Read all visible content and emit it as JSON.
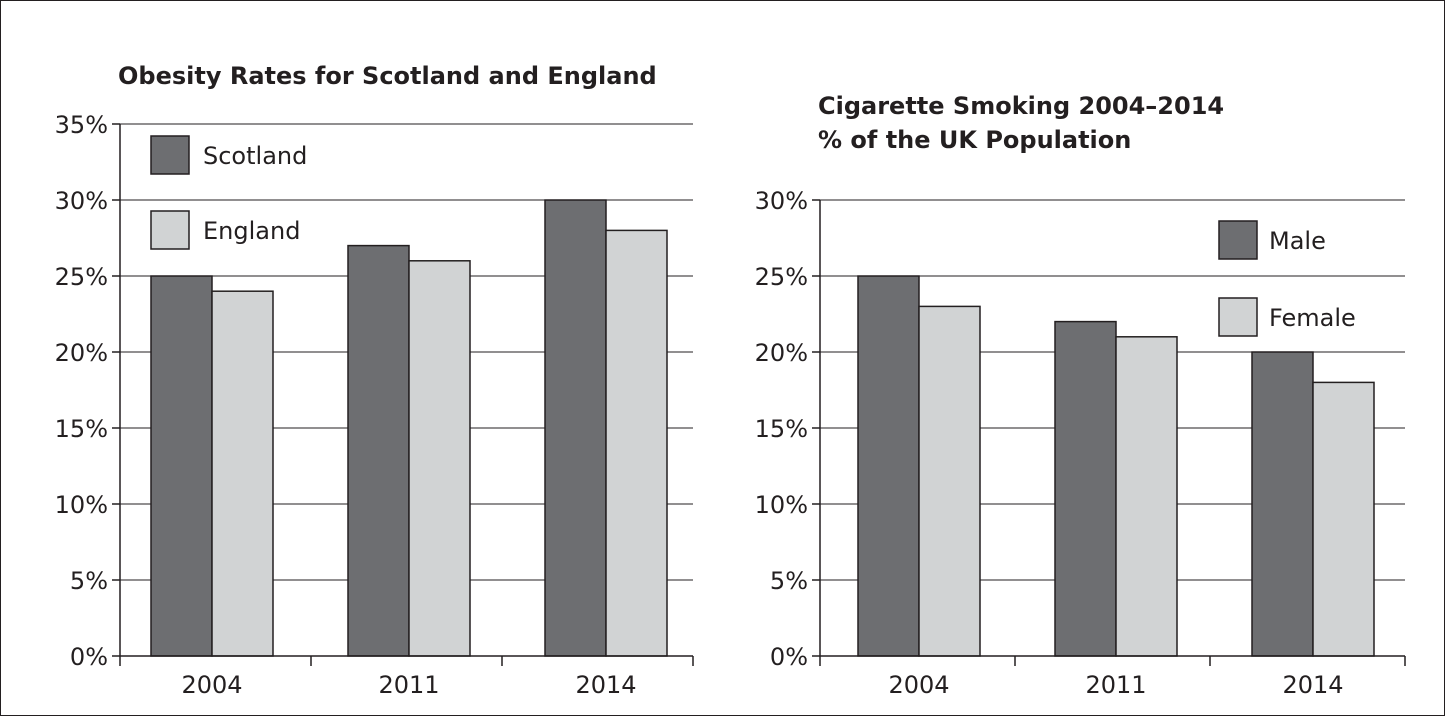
{
  "chart_data": [
    {
      "type": "bar",
      "title": "Obesity Rates for Scotland and England",
      "categories": [
        "2004",
        "2011",
        "2014"
      ],
      "series": [
        {
          "name": "Scotland",
          "values": [
            25,
            27,
            30
          ],
          "color": "#6d6e71"
        },
        {
          "name": "England",
          "values": [
            24,
            26,
            28
          ],
          "color": "#d1d3d4"
        }
      ],
      "ylim": [
        0,
        35
      ],
      "yticks": [
        "0%",
        "5%",
        "10%",
        "15%",
        "20%",
        "25%",
        "30%",
        "35%"
      ],
      "grid": true,
      "legend": "top-left"
    },
    {
      "type": "bar",
      "title": "Cigarette Smoking 2004–2014",
      "subtitle": "% of the UK Population",
      "categories": [
        "2004",
        "2011",
        "2014"
      ],
      "series": [
        {
          "name": "Male",
          "values": [
            25,
            22,
            20
          ],
          "color": "#6d6e71"
        },
        {
          "name": "Female",
          "values": [
            23,
            21,
            18
          ],
          "color": "#d1d3d4"
        }
      ],
      "ylim": [
        0,
        30
      ],
      "yticks": [
        "0%",
        "5%",
        "10%",
        "15%",
        "20%",
        "25%",
        "30%"
      ],
      "grid": true,
      "legend": "top-right"
    }
  ]
}
